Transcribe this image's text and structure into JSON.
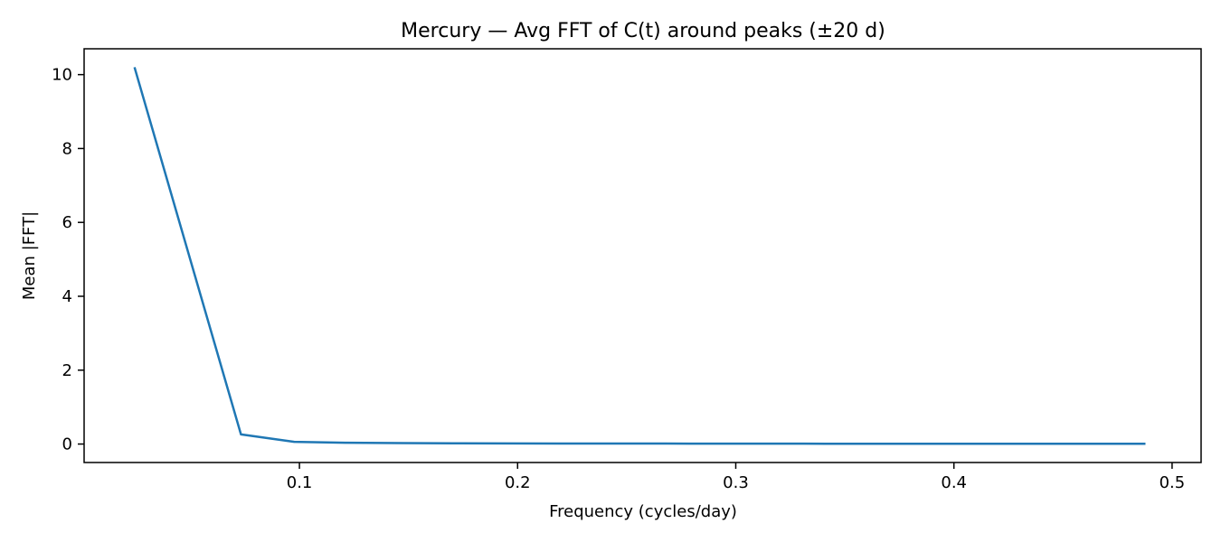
{
  "chart_data": {
    "type": "line",
    "title": "Mercury — Avg FFT of C(t) around peaks (±20 d)",
    "xlabel": "Frequency (cycles/day)",
    "ylabel": "Mean |FFT|",
    "xlim": [
      0.0013,
      0.5133
    ],
    "ylim": [
      -0.5,
      10.7
    ],
    "x_ticks": [
      0.1,
      0.2,
      0.3,
      0.4,
      0.5
    ],
    "x_tick_labels": [
      "0.1",
      "0.2",
      "0.3",
      "0.4",
      "0.5"
    ],
    "y_ticks": [
      0,
      2,
      4,
      6,
      8,
      10
    ],
    "y_tick_labels": [
      "0",
      "2",
      "4",
      "6",
      "8",
      "10"
    ],
    "grid": false,
    "series": [
      {
        "color": "#1f77b4",
        "x": [
          0.0244,
          0.0732,
          0.0976,
          0.122,
          0.1463,
          0.1707,
          0.1951,
          0.2195,
          0.2439,
          0.2683,
          0.2927,
          0.3171,
          0.3415,
          0.3659,
          0.3902,
          0.4146,
          0.439,
          0.4634,
          0.4878
        ],
        "values": [
          10.2,
          0.26,
          0.06,
          0.035,
          0.025,
          0.02,
          0.017,
          0.015,
          0.013,
          0.012,
          0.011,
          0.01,
          0.009,
          0.008,
          0.008,
          0.007,
          0.007,
          0.006,
          0.006
        ]
      }
    ]
  }
}
